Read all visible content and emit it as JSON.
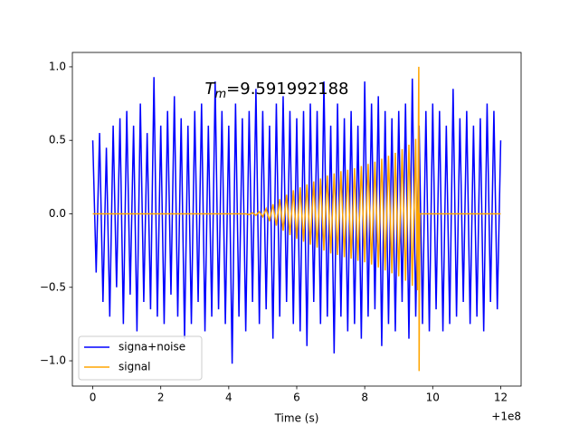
{
  "chart_data": {
    "type": "line",
    "annotation": {
      "symbol": "T",
      "subscript": "m",
      "text": "=9.591992188"
    },
    "x_label": "Time (s)",
    "x_offset_label": "+1e8",
    "xlim": [
      -0.6,
      12.6
    ],
    "ylim": [
      -1.172,
      1.098
    ],
    "xticks": [
      0,
      2,
      4,
      6,
      8,
      10,
      12
    ],
    "yticks": [
      {
        "value": -1,
        "label": "−1.0"
      },
      {
        "value": -0.5,
        "label": "−0.5"
      },
      {
        "value": 0,
        "label": "0.0"
      },
      {
        "value": 0.5,
        "label": "0.5"
      },
      {
        "value": 1,
        "label": "1.0"
      }
    ],
    "legend": "lower left",
    "series": [
      {
        "name": "signa+noise",
        "color": "#0000ff",
        "x": [
          0,
          0.1,
          0.2,
          0.3,
          0.4,
          0.5,
          0.6,
          0.7,
          0.8,
          0.9,
          1,
          1.1,
          1.2,
          1.3,
          1.4,
          1.5,
          1.6,
          1.7,
          1.8,
          1.9,
          2,
          2.1,
          2.2,
          2.3,
          2.4,
          2.5,
          2.6,
          2.7,
          2.8,
          2.9,
          3,
          3.1,
          3.2,
          3.3,
          3.4,
          3.5,
          3.6,
          3.7,
          3.8,
          3.9,
          4,
          4.1,
          4.2,
          4.3,
          4.4,
          4.5,
          4.6,
          4.7,
          4.8,
          4.9,
          5,
          5.1,
          5.2,
          5.3,
          5.4,
          5.5,
          5.6,
          5.7,
          5.8,
          5.9,
          6,
          6.1,
          6.2,
          6.3,
          6.4,
          6.5,
          6.6,
          6.7,
          6.8,
          6.9,
          7,
          7.1,
          7.2,
          7.3,
          7.4,
          7.5,
          7.6,
          7.7,
          7.8,
          7.9,
          8,
          8.1,
          8.2,
          8.3,
          8.4,
          8.5,
          8.6,
          8.7,
          8.8,
          8.9,
          9,
          9.1,
          9.2,
          9.3,
          9.4,
          9.5,
          9.6,
          9.7,
          9.8,
          9.9,
          10,
          10.1,
          10.2,
          10.3,
          10.4,
          10.5,
          10.6,
          10.7,
          10.8,
          10.9,
          11,
          11.1,
          11.2,
          11.3,
          11.4,
          11.5,
          11.6,
          11.7,
          11.8,
          11.9,
          12
        ],
        "values": [
          0.5,
          -0.4,
          0.55,
          -0.6,
          0.45,
          -0.7,
          0.6,
          -0.5,
          0.65,
          -0.75,
          0.7,
          -0.55,
          0.6,
          -0.8,
          0.75,
          -0.6,
          0.55,
          -0.65,
          0.93,
          -0.7,
          0.6,
          -0.75,
          0.7,
          -0.55,
          0.8,
          -0.7,
          0.65,
          -0.85,
          0.6,
          -0.75,
          0.7,
          -0.6,
          0.75,
          -0.8,
          0.6,
          -0.7,
          0.9,
          -0.65,
          0.7,
          -0.75,
          0.6,
          -1.02,
          0.75,
          -0.7,
          0.65,
          -0.8,
          0.7,
          -0.6,
          0.85,
          -0.75,
          0.7,
          -0.65,
          0.6,
          -0.85,
          0.75,
          -0.7,
          0.8,
          -0.6,
          0.7,
          -0.75,
          0.65,
          -0.8,
          0.7,
          -0.9,
          0.75,
          -0.6,
          0.7,
          -0.75,
          0.9,
          -0.7,
          0.6,
          -0.95,
          0.75,
          -0.7,
          0.65,
          -0.8,
          0.7,
          -0.75,
          0.6,
          -0.85,
          0.9,
          -0.7,
          0.75,
          -0.65,
          0.8,
          -0.9,
          0.7,
          -0.75,
          0.65,
          -0.8,
          0.7,
          -0.6,
          0.75,
          -0.85,
          0.92,
          -0.7,
          0.6,
          -0.75,
          0.7,
          -0.8,
          0.75,
          -0.65,
          0.7,
          -0.8,
          0.6,
          -0.75,
          0.85,
          -0.7,
          0.65,
          -0.6,
          0.7,
          -0.75,
          0.6,
          -0.7,
          0.65,
          -0.8,
          0.75,
          -0.6,
          0.7,
          -0.65,
          0.5
        ]
      },
      {
        "name": "signal",
        "color": "#ffa500",
        "x": [
          0,
          4.5,
          4.6,
          4.7,
          4.8,
          4.9,
          5,
          5.1,
          5.2,
          5.3,
          5.4,
          5.5,
          5.6,
          5.7,
          5.8,
          5.9,
          6,
          6.1,
          6.2,
          6.3,
          6.4,
          6.5,
          6.6,
          6.7,
          6.8,
          6.9,
          7,
          7.1,
          7.2,
          7.3,
          7.4,
          7.5,
          7.6,
          7.7,
          7.8,
          7.9,
          8,
          8.1,
          8.2,
          8.3,
          8.4,
          8.5,
          8.6,
          8.7,
          8.8,
          8.9,
          9,
          9.1,
          9.2,
          9.3,
          9.4,
          9.5,
          9.55,
          9.59,
          9.6,
          9.62,
          12
        ],
        "values": [
          0,
          0,
          -0.005,
          0.007,
          -0.01,
          0.015,
          -0.02,
          0.035,
          -0.05,
          0.065,
          -0.08,
          0.1,
          -0.115,
          0.13,
          -0.145,
          0.16,
          -0.17,
          0.18,
          -0.19,
          0.2,
          -0.21,
          0.22,
          -0.23,
          0.24,
          -0.25,
          0.26,
          -0.27,
          0.275,
          -0.28,
          0.29,
          -0.295,
          0.3,
          -0.305,
          0.31,
          -0.32,
          0.325,
          -0.33,
          0.34,
          -0.345,
          0.355,
          -0.365,
          0.375,
          -0.385,
          0.395,
          -0.405,
          0.415,
          -0.425,
          0.44,
          -0.455,
          0.47,
          -0.49,
          0.51,
          -0.52,
          1.0,
          -1.07,
          0,
          0
        ]
      }
    ]
  }
}
